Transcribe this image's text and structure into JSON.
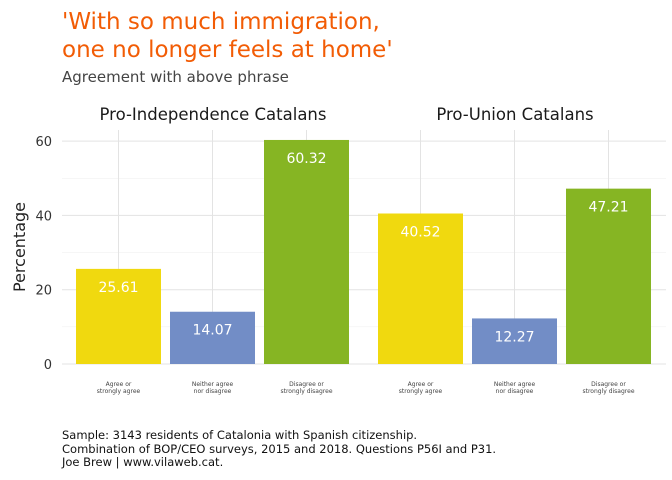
{
  "title": "'With so much immigration,\none no longer feels at home'",
  "subtitle": "Agreement with above phrase",
  "caption": [
    "Sample: 3143 residents of Catalonia with Spanish citizenship.",
    "Combination of BOP/CEO surveys, 2015 and 2018. Questions P56I and P31.",
    "Joe Brew | www.vilaweb.cat."
  ],
  "chart_data": {
    "type": "bar",
    "ylabel": "Percentage",
    "xlabel": "",
    "ylim": [
      0,
      63
    ],
    "y_ticks": [
      0,
      20,
      40,
      60
    ],
    "grid": true,
    "categories": [
      [
        "Agree or",
        "strongly agree"
      ],
      [
        "Neither agree",
        "nor disagree"
      ],
      [
        "Disagree or",
        "strongly disagree"
      ]
    ],
    "category_colors": [
      "#f0d90f",
      "#728dc6",
      "#86b523"
    ],
    "panels": [
      {
        "title": "Pro-Independence Catalans",
        "values": [
          25.61,
          14.07,
          60.32
        ]
      },
      {
        "title": "Pro-Union Catalans",
        "values": [
          40.52,
          12.27,
          47.21
        ]
      }
    ]
  }
}
